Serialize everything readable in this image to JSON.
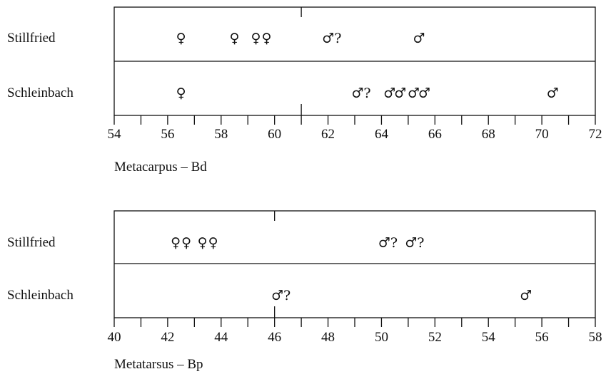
{
  "chart_data": [
    {
      "type": "scatter",
      "title": "",
      "xlabel": "Metacarpus – Bd",
      "xlim": [
        54,
        72
      ],
      "major_ticks": [
        54,
        56,
        58,
        60,
        62,
        64,
        66,
        68,
        70,
        72
      ],
      "minor_step": 1,
      "reference_line": 61,
      "rows": [
        {
          "name": "Stillfried",
          "points": [
            {
              "x": 56.5,
              "label": "♀"
            },
            {
              "x": 58.5,
              "label": "♀"
            },
            {
              "x": 59.3,
              "label": "♀"
            },
            {
              "x": 59.7,
              "label": "♀"
            },
            {
              "x": 62.3,
              "label": "♂?"
            },
            {
              "x": 65.4,
              "label": "♂"
            }
          ]
        },
        {
          "name": "Schleinbach",
          "points": [
            {
              "x": 56.5,
              "label": "♀"
            },
            {
              "x": 63.4,
              "label": "♂?"
            },
            {
              "x": 64.3,
              "label": "♂"
            },
            {
              "x": 64.7,
              "label": "♂"
            },
            {
              "x": 65.2,
              "label": "♂"
            },
            {
              "x": 65.6,
              "label": "♂"
            },
            {
              "x": 70.4,
              "label": "♂"
            }
          ]
        }
      ]
    },
    {
      "type": "scatter",
      "title": "",
      "xlabel": "Metatarsus – Bp",
      "xlim": [
        40,
        58
      ],
      "major_ticks": [
        40,
        42,
        44,
        46,
        48,
        50,
        52,
        54,
        56,
        58
      ],
      "minor_step": 1,
      "reference_line": 46,
      "rows": [
        {
          "name": "Stillfried",
          "points": [
            {
              "x": 42.3,
              "label": "♀"
            },
            {
              "x": 42.7,
              "label": "♀"
            },
            {
              "x": 43.3,
              "label": "♀"
            },
            {
              "x": 43.7,
              "label": "♀"
            },
            {
              "x": 50.4,
              "label": "♂?"
            },
            {
              "x": 51.4,
              "label": "♂?"
            }
          ]
        },
        {
          "name": "Schleinbach",
          "points": [
            {
              "x": 46.4,
              "label": "♂?"
            },
            {
              "x": 55.4,
              "label": "♂"
            }
          ]
        }
      ]
    }
  ]
}
